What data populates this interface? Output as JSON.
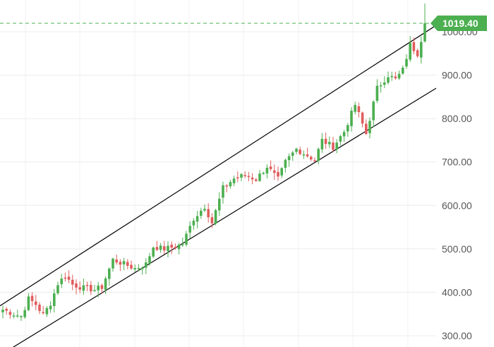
{
  "chart_data": {
    "type": "candlestick",
    "title": "",
    "xlabel": "",
    "ylabel": "",
    "ylim": [
      290,
      1070
    ],
    "grid": true,
    "colors": {
      "up": "#4caf50",
      "down": "#e05d5d",
      "channel": "#000000",
      "last_price_line": "#4caf50",
      "grid": "#ececec"
    },
    "y_ticks": [
      {
        "value": 1000,
        "label": "1000.00"
      },
      {
        "value": 900,
        "label": "900.00"
      },
      {
        "value": 800,
        "label": "800.00"
      },
      {
        "value": 700,
        "label": "700.00"
      },
      {
        "value": 600,
        "label": "600.00"
      },
      {
        "value": 500,
        "label": "500.00"
      },
      {
        "value": 400,
        "label": "400.00"
      },
      {
        "value": 300,
        "label": "300.00"
      }
    ],
    "last_price": {
      "value": 1019.4,
      "label": "1019.40"
    },
    "channel_upper": {
      "start": {
        "bar": 0,
        "value": 373
      },
      "end": {
        "bar": 115,
        "value": 998
      }
    },
    "channel_lower": {
      "start": {
        "bar": 0,
        "value": 259
      },
      "end": {
        "bar": 115,
        "value": 854
      }
    },
    "anchors": [
      [
        0,
        360
      ],
      [
        3,
        350
      ],
      [
        5,
        345
      ],
      [
        7,
        385
      ],
      [
        9,
        372
      ],
      [
        11,
        348
      ],
      [
        13,
        375
      ],
      [
        15,
        420
      ],
      [
        17,
        438
      ],
      [
        19,
        418
      ],
      [
        22,
        410
      ],
      [
        25,
        406
      ],
      [
        27,
        412
      ],
      [
        30,
        475
      ],
      [
        33,
        465
      ],
      [
        36,
        455
      ],
      [
        39,
        465
      ],
      [
        41,
        505
      ],
      [
        44,
        500
      ],
      [
        47,
        505
      ],
      [
        49,
        512
      ],
      [
        52,
        570
      ],
      [
        55,
        598
      ],
      [
        57,
        560
      ],
      [
        60,
        640
      ],
      [
        63,
        662
      ],
      [
        66,
        670
      ],
      [
        69,
        660
      ],
      [
        72,
        690
      ],
      [
        75,
        660
      ],
      [
        77,
        700
      ],
      [
        80,
        730
      ],
      [
        82,
        720
      ],
      [
        85,
        705
      ],
      [
        87,
        750
      ],
      [
        90,
        735
      ],
      [
        93,
        770
      ],
      [
        96,
        832
      ],
      [
        99,
        765
      ],
      [
        102,
        870
      ],
      [
        105,
        900
      ],
      [
        107,
        890
      ],
      [
        109,
        912
      ],
      [
        111,
        970
      ],
      [
        113,
        950
      ],
      [
        115,
        1015
      ]
    ],
    "n_bars": 116
  }
}
